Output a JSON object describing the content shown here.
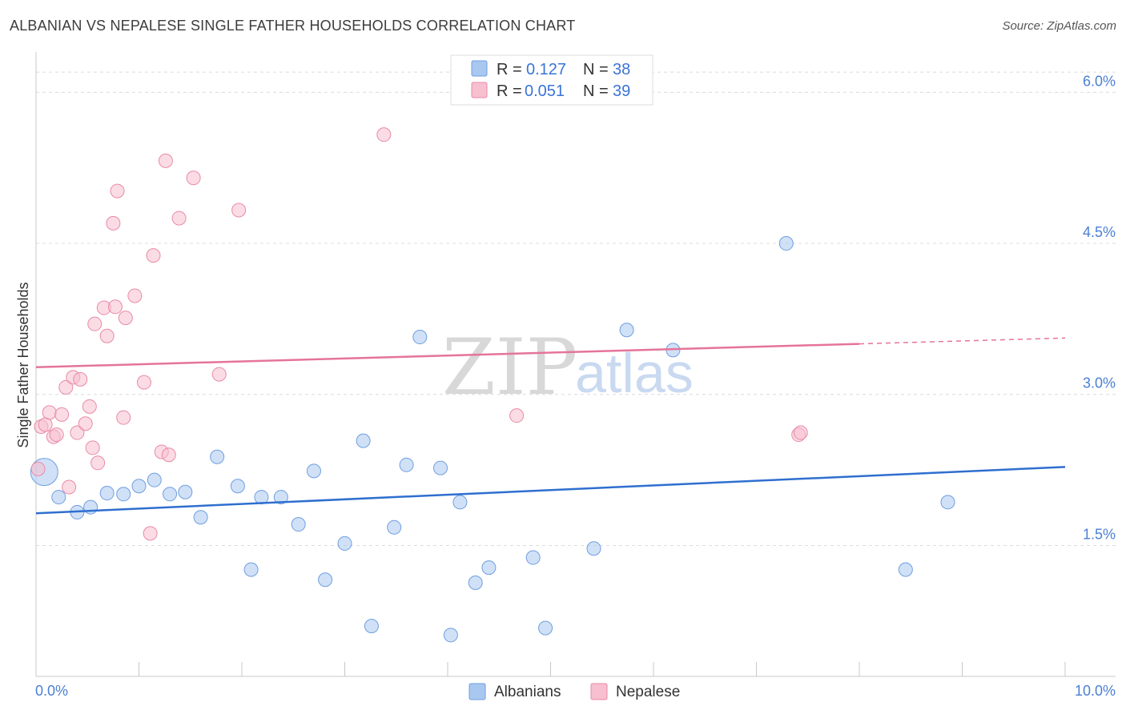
{
  "header": {
    "title": "ALBANIAN VS NEPALESE SINGLE FATHER HOUSEHOLDS CORRELATION CHART",
    "source": "Source: ZipAtlas.com"
  },
  "watermark": {
    "zip": "ZIP",
    "atlas": "atlas"
  },
  "chart_data": {
    "type": "scatter",
    "title": "ALBANIAN VS NEPALESE SINGLE FATHER HOUSEHOLDS CORRELATION CHART",
    "xlabel": "",
    "ylabel": "Single Father Households",
    "xlim": [
      0,
      10
    ],
    "ylim": [
      0.2,
      6.4
    ],
    "x_tick_labels": {
      "min": "0.0%",
      "max": "10.0%"
    },
    "y_ticks": [
      {
        "value": 1.5,
        "label": "1.5%"
      },
      {
        "value": 3.0,
        "label": "3.0%"
      },
      {
        "value": 4.5,
        "label": "4.5%"
      },
      {
        "value": 6.0,
        "label": "6.0%"
      }
    ],
    "legend": {
      "r_label": "R =",
      "n_label": "N =",
      "entries": [
        {
          "name": "Albanians",
          "r": "0.127",
          "n": "38",
          "color": "#a9c8f0",
          "stroke": "#6f9ee0"
        },
        {
          "name": "Nepalese",
          "r": "0.051",
          "n": "39",
          "color": "#f7bfd0",
          "stroke": "#e88aa8"
        }
      ]
    },
    "series": [
      {
        "name": "Albanians",
        "color": "#a9c8f0",
        "stroke": "#6f9ee0",
        "line_color": "#2f6fcf",
        "trend": {
          "x0": 0,
          "y0": 1.82,
          "x1": 10,
          "y1": 2.28,
          "solid_until": 10
        },
        "points": [
          {
            "x": 0.08,
            "y": 2.23,
            "big": true
          },
          {
            "x": 0.22,
            "y": 1.98
          },
          {
            "x": 0.4,
            "y": 1.83
          },
          {
            "x": 0.53,
            "y": 1.88
          },
          {
            "x": 0.69,
            "y": 2.02
          },
          {
            "x": 0.85,
            "y": 2.01
          },
          {
            "x": 1.0,
            "y": 2.09
          },
          {
            "x": 1.15,
            "y": 2.15
          },
          {
            "x": 1.3,
            "y": 2.01
          },
          {
            "x": 1.45,
            "y": 2.03
          },
          {
            "x": 1.6,
            "y": 1.78
          },
          {
            "x": 1.76,
            "y": 2.38
          },
          {
            "x": 1.96,
            "y": 2.09
          },
          {
            "x": 2.09,
            "y": 1.26
          },
          {
            "x": 2.19,
            "y": 1.98
          },
          {
            "x": 2.38,
            "y": 1.98
          },
          {
            "x": 2.55,
            "y": 1.71
          },
          {
            "x": 2.7,
            "y": 2.24
          },
          {
            "x": 2.81,
            "y": 1.16
          },
          {
            "x": 3.0,
            "y": 1.52
          },
          {
            "x": 3.18,
            "y": 2.54
          },
          {
            "x": 3.26,
            "y": 0.7
          },
          {
            "x": 3.48,
            "y": 1.68
          },
          {
            "x": 3.6,
            "y": 2.3
          },
          {
            "x": 3.73,
            "y": 3.57
          },
          {
            "x": 3.93,
            "y": 2.27
          },
          {
            "x": 4.03,
            "y": 0.61
          },
          {
            "x": 4.12,
            "y": 1.93
          },
          {
            "x": 4.27,
            "y": 1.13
          },
          {
            "x": 4.4,
            "y": 1.28
          },
          {
            "x": 4.83,
            "y": 1.38
          },
          {
            "x": 4.95,
            "y": 0.68
          },
          {
            "x": 5.42,
            "y": 1.47
          },
          {
            "x": 5.74,
            "y": 3.64
          },
          {
            "x": 6.19,
            "y": 3.44
          },
          {
            "x": 7.29,
            "y": 4.5
          },
          {
            "x": 8.45,
            "y": 1.26
          },
          {
            "x": 8.86,
            "y": 1.93
          }
        ]
      },
      {
        "name": "Nepalese",
        "color": "#f7bfd0",
        "stroke": "#e88aa8",
        "line_color": "#e5749a",
        "trend": {
          "x0": 0,
          "y0": 3.27,
          "x1": 10,
          "y1": 3.56,
          "solid_until": 8.0
        },
        "points": [
          {
            "x": 0.02,
            "y": 2.26
          },
          {
            "x": 0.05,
            "y": 2.68
          },
          {
            "x": 0.09,
            "y": 2.7
          },
          {
            "x": 0.13,
            "y": 2.82
          },
          {
            "x": 0.17,
            "y": 2.58
          },
          {
            "x": 0.2,
            "y": 2.6
          },
          {
            "x": 0.25,
            "y": 2.8
          },
          {
            "x": 0.29,
            "y": 3.07
          },
          {
            "x": 0.32,
            "y": 2.08
          },
          {
            "x": 0.36,
            "y": 3.17
          },
          {
            "x": 0.4,
            "y": 2.62
          },
          {
            "x": 0.43,
            "y": 3.15
          },
          {
            "x": 0.48,
            "y": 2.71
          },
          {
            "x": 0.52,
            "y": 2.88
          },
          {
            "x": 0.55,
            "y": 2.47
          },
          {
            "x": 0.57,
            "y": 3.7
          },
          {
            "x": 0.6,
            "y": 2.32
          },
          {
            "x": 0.66,
            "y": 3.86
          },
          {
            "x": 0.69,
            "y": 3.58
          },
          {
            "x": 0.75,
            "y": 4.7
          },
          {
            "x": 0.77,
            "y": 3.87
          },
          {
            "x": 0.79,
            "y": 5.02
          },
          {
            "x": 0.85,
            "y": 2.77
          },
          {
            "x": 0.87,
            "y": 3.76
          },
          {
            "x": 0.96,
            "y": 3.98
          },
          {
            "x": 1.05,
            "y": 3.12
          },
          {
            "x": 1.11,
            "y": 1.62
          },
          {
            "x": 1.14,
            "y": 4.38
          },
          {
            "x": 1.22,
            "y": 2.43
          },
          {
            "x": 1.26,
            "y": 5.32
          },
          {
            "x": 1.29,
            "y": 2.4
          },
          {
            "x": 1.39,
            "y": 4.75
          },
          {
            "x": 1.53,
            "y": 5.15
          },
          {
            "x": 1.78,
            "y": 3.2
          },
          {
            "x": 1.97,
            "y": 4.83
          },
          {
            "x": 3.38,
            "y": 5.58
          },
          {
            "x": 4.67,
            "y": 2.79
          },
          {
            "x": 7.41,
            "y": 2.6
          },
          {
            "x": 7.43,
            "y": 2.62
          }
        ]
      }
    ]
  }
}
